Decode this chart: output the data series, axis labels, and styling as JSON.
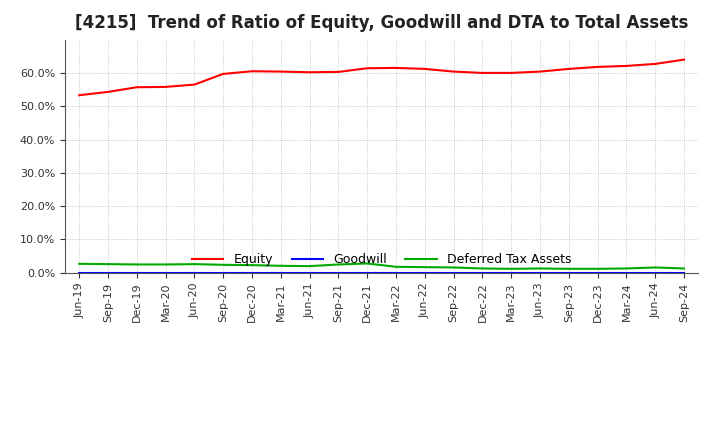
{
  "title": "[4215]  Trend of Ratio of Equity, Goodwill and DTA to Total Assets",
  "x_labels": [
    "Jun-19",
    "Sep-19",
    "Dec-19",
    "Mar-20",
    "Jun-20",
    "Sep-20",
    "Dec-20",
    "Mar-21",
    "Jun-21",
    "Sep-21",
    "Dec-21",
    "Mar-22",
    "Jun-22",
    "Sep-22",
    "Dec-22",
    "Mar-23",
    "Jun-23",
    "Sep-23",
    "Dec-23",
    "Mar-24",
    "Jun-24",
    "Sep-24"
  ],
  "equity": [
    0.533,
    0.543,
    0.557,
    0.558,
    0.565,
    0.597,
    0.605,
    0.604,
    0.602,
    0.603,
    0.614,
    0.615,
    0.612,
    0.604,
    0.6,
    0.6,
    0.604,
    0.612,
    0.618,
    0.621,
    0.627,
    0.64
  ],
  "goodwill": [
    0.0,
    0.0,
    0.0,
    0.0,
    0.0,
    0.0,
    0.0,
    0.0,
    0.0,
    0.0,
    0.0,
    0.0,
    0.0,
    0.0,
    0.0,
    0.0,
    0.0,
    0.0,
    0.0,
    0.0,
    0.0,
    0.0
  ],
  "dta": [
    0.027,
    0.026,
    0.025,
    0.025,
    0.026,
    0.024,
    0.023,
    0.021,
    0.02,
    0.025,
    0.028,
    0.018,
    0.017,
    0.016,
    0.013,
    0.012,
    0.013,
    0.012,
    0.012,
    0.013,
    0.016,
    0.013
  ],
  "equity_color": "#ff0000",
  "goodwill_color": "#0000ff",
  "dta_color": "#00aa00",
  "ylim": [
    0.0,
    0.7
  ],
  "yticks": [
    0.0,
    0.1,
    0.2,
    0.3,
    0.4,
    0.5,
    0.6
  ],
  "background_color": "#ffffff",
  "grid_color": "#aaaaaa",
  "title_fontsize": 12,
  "tick_fontsize": 8,
  "legend_fontsize": 9
}
